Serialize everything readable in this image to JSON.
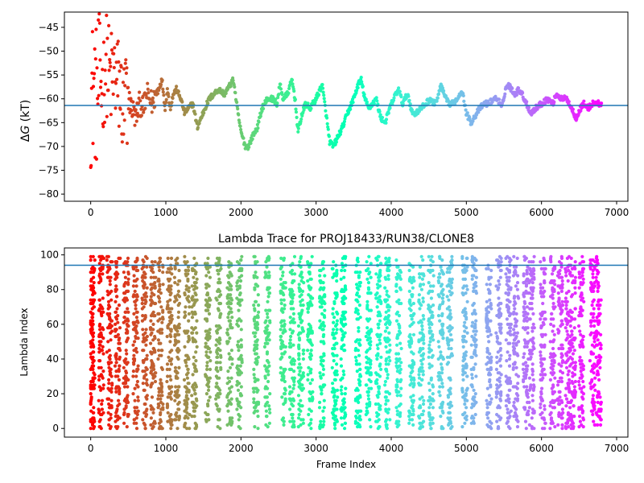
{
  "chart_data": [
    {
      "type": "scatter",
      "title": "",
      "xlabel": "",
      "ylabel_symbol": "ΔG",
      "ylabel_italic_part": "G",
      "ylabel_unit": "(kT)",
      "xlim": [
        -350,
        7150
      ],
      "ylim": [
        -81.5,
        -41.8
      ],
      "xticks": [
        0,
        1000,
        2000,
        3000,
        4000,
        5000,
        6000,
        7000
      ],
      "xtick_labels": [
        "0",
        "1000",
        "2000",
        "3000",
        "4000",
        "5000",
        "6000",
        "7000"
      ],
      "yticks": [
        -45,
        -50,
        -55,
        -60,
        -65,
        -70,
        -75,
        -80
      ],
      "ytick_labels": [
        "−45",
        "−50",
        "−55",
        "−60",
        "−65",
        "−70",
        "−75",
        "−80"
      ],
      "hline": -61.4,
      "hline_color": "#1f77b4",
      "grid": false,
      "colormap": "rainbow (color encodes frame index, red at start to violet at end)",
      "anchors": [
        [
          0,
          -60
        ],
        [
          40,
          -57
        ],
        [
          80,
          -60
        ],
        [
          120,
          -55
        ],
        [
          160,
          -58
        ],
        [
          200,
          -52
        ],
        [
          260,
          -56
        ],
        [
          320,
          -55
        ],
        [
          380,
          -58
        ],
        [
          440,
          -62
        ],
        [
          500,
          -60
        ],
        [
          550,
          -62
        ],
        [
          600,
          -64
        ],
        [
          650,
          -61
        ],
        [
          700,
          -62
        ],
        [
          750,
          -59
        ],
        [
          820,
          -61
        ],
        [
          900,
          -58
        ],
        [
          950,
          -56
        ],
        [
          990,
          -62
        ],
        [
          1020,
          -58
        ],
        [
          1060,
          -62
        ],
        [
          1100,
          -59
        ],
        [
          1140,
          -58
        ],
        [
          1200,
          -60
        ],
        [
          1250,
          -63
        ],
        [
          1300,
          -62
        ],
        [
          1360,
          -61
        ],
        [
          1420,
          -66
        ],
        [
          1470,
          -64
        ],
        [
          1520,
          -62
        ],
        [
          1580,
          -60
        ],
        [
          1640,
          -59
        ],
        [
          1700,
          -58
        ],
        [
          1780,
          -59
        ],
        [
          1860,
          -57
        ],
        [
          1900,
          -56
        ],
        [
          1950,
          -62
        ],
        [
          2000,
          -67
        ],
        [
          2060,
          -70
        ],
        [
          2100,
          -70
        ],
        [
          2150,
          -68
        ],
        [
          2220,
          -66
        ],
        [
          2280,
          -62
        ],
        [
          2350,
          -60
        ],
        [
          2420,
          -60
        ],
        [
          2480,
          -61
        ],
        [
          2520,
          -57
        ],
        [
          2560,
          -60
        ],
        [
          2620,
          -59
        ],
        [
          2680,
          -56
        ],
        [
          2720,
          -60
        ],
        [
          2760,
          -67
        ],
        [
          2800,
          -64
        ],
        [
          2860,
          -61
        ],
        [
          2920,
          -62
        ],
        [
          3000,
          -60
        ],
        [
          3080,
          -57
        ],
        [
          3140,
          -64
        ],
        [
          3180,
          -69
        ],
        [
          3230,
          -70
        ],
        [
          3290,
          -68
        ],
        [
          3350,
          -66
        ],
        [
          3420,
          -63
        ],
        [
          3500,
          -60
        ],
        [
          3560,
          -57
        ],
        [
          3600,
          -56
        ],
        [
          3650,
          -60
        ],
        [
          3700,
          -62
        ],
        [
          3750,
          -61
        ],
        [
          3800,
          -60
        ],
        [
          3860,
          -64
        ],
        [
          3920,
          -65
        ],
        [
          3980,
          -62
        ],
        [
          4060,
          -59
        ],
        [
          4100,
          -58
        ],
        [
          4150,
          -61
        ],
        [
          4220,
          -59
        ],
        [
          4280,
          -63
        ],
        [
          4330,
          -63
        ],
        [
          4400,
          -62
        ],
        [
          4460,
          -61
        ],
        [
          4520,
          -60
        ],
        [
          4560,
          -61
        ],
        [
          4620,
          -60
        ],
        [
          4660,
          -57
        ],
        [
          4700,
          -59
        ],
        [
          4760,
          -61
        ],
        [
          4820,
          -61
        ],
        [
          4880,
          -60
        ],
        [
          4940,
          -58
        ],
        [
          5000,
          -63
        ],
        [
          5060,
          -65
        ],
        [
          5100,
          -64
        ],
        [
          5180,
          -62
        ],
        [
          5240,
          -61
        ],
        [
          5300,
          -61
        ],
        [
          5360,
          -60
        ],
        [
          5420,
          -60
        ],
        [
          5470,
          -62
        ],
        [
          5520,
          -58
        ],
        [
          5560,
          -57
        ],
        [
          5600,
          -58
        ],
        [
          5650,
          -59
        ],
        [
          5700,
          -58
        ],
        [
          5740,
          -59
        ],
        [
          5800,
          -61
        ],
        [
          5860,
          -63
        ],
        [
          5920,
          -62
        ],
        [
          6000,
          -61
        ],
        [
          6080,
          -60
        ],
        [
          6150,
          -61
        ],
        [
          6200,
          -59
        ],
        [
          6260,
          -60
        ],
        [
          6340,
          -60
        ],
        [
          6400,
          -62
        ],
        [
          6460,
          -64
        ],
        [
          6520,
          -62
        ],
        [
          6560,
          -61
        ],
        [
          6620,
          -62
        ],
        [
          6680,
          -61
        ],
        [
          6760,
          -61
        ],
        [
          6800,
          -61
        ]
      ]
    },
    {
      "type": "scatter",
      "title": "Lambda Trace for PROJ18433/RUN38/CLONE8",
      "xlabel": "Frame Index",
      "ylabel": "Lambda Index",
      "xlim": [
        -350,
        7150
      ],
      "ylim": [
        -5,
        104
      ],
      "xticks": [
        0,
        1000,
        2000,
        3000,
        4000,
        5000,
        6000,
        7000
      ],
      "xtick_labels": [
        "0",
        "1000",
        "2000",
        "3000",
        "4000",
        "5000",
        "6000",
        "7000"
      ],
      "yticks": [
        0,
        20,
        40,
        60,
        80,
        100
      ],
      "ytick_labels": [
        "0",
        "20",
        "40",
        "60",
        "80",
        "100"
      ],
      "hline": 94,
      "hline_color": "#1f77b4",
      "grid": false,
      "colormap": "rainbow (color encodes frame index, red at start to violet at end)",
      "frames": [
        0,
        6800
      ],
      "lambda_range": [
        0,
        99
      ],
      "sweep_columns_x": [
        20,
        140,
        250,
        360,
        470,
        600,
        720,
        830,
        930,
        1050,
        1150,
        1280,
        1380,
        1560,
        1700,
        1850,
        1980,
        2200,
        2350,
        2560,
        2680,
        2800,
        2920,
        3080,
        3250,
        3360,
        3560,
        3700,
        3830,
        3950,
        4100,
        4270,
        4400,
        4530,
        4660,
        4780,
        4980,
        5100,
        5300,
        5430,
        5560,
        5660,
        5790,
        5870,
        6020,
        6150,
        6250,
        6350,
        6420,
        6530,
        6680,
        6760
      ]
    }
  ]
}
